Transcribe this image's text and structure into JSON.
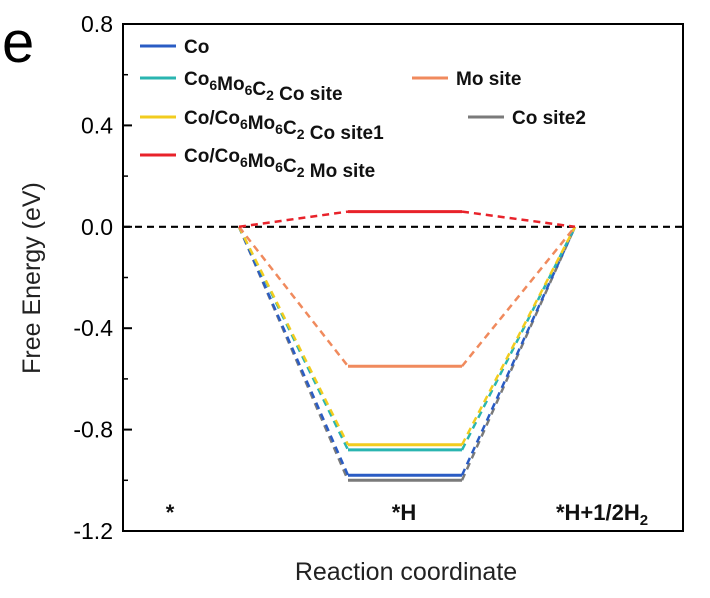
{
  "panel_label": "e",
  "chart_data": {
    "type": "line",
    "title": "",
    "xlabel": "Reaction coordinate",
    "ylabel": "Free Energy (eV)",
    "ylim": [
      -1.2,
      0.8
    ],
    "yticks": [
      -1.2,
      -0.8,
      -0.4,
      0.0,
      0.4,
      0.8
    ],
    "ytick_labels": [
      "-1.2",
      "-0.8",
      "-0.4",
      "0.0",
      "0.4",
      "0.8"
    ],
    "categories": [
      "*",
      "*H",
      "*H+1/2H2"
    ],
    "category_labels": [
      {
        "main": "*",
        "sub": "",
        "tail": ""
      },
      {
        "main": "*H",
        "sub": "",
        "tail": ""
      },
      {
        "main": "*H+1/2H",
        "sub": "2",
        "tail": ""
      }
    ],
    "reference_line": {
      "y": 0.0,
      "style": "dashed",
      "color": "#000000"
    },
    "series": [
      {
        "name": "Co",
        "name_parts": [
          [
            "Co",
            ""
          ]
        ],
        "color": "#2a5cc4",
        "values": [
          0,
          -0.98,
          0
        ]
      },
      {
        "name": "Co6Mo6C2 Co site",
        "name_parts": [
          [
            "Co",
            ""
          ],
          [
            "6",
            "sub"
          ],
          [
            "Mo",
            ""
          ],
          [
            "6",
            "sub"
          ],
          [
            "C",
            ""
          ],
          [
            "2",
            "sub"
          ],
          [
            " Co site",
            ""
          ]
        ],
        "color": "#2ab5b0",
        "values": [
          0,
          -0.88,
          0
        ]
      },
      {
        "name": "Mo site",
        "name_parts": [
          [
            "Mo site",
            ""
          ]
        ],
        "color": "#f08a5d",
        "values": [
          0,
          -0.55,
          0
        ]
      },
      {
        "name": "Co/Co6Mo6C2 Co site1",
        "name_parts": [
          [
            "Co/Co",
            ""
          ],
          [
            "6",
            "sub"
          ],
          [
            "Mo",
            ""
          ],
          [
            "6",
            "sub"
          ],
          [
            "C",
            ""
          ],
          [
            "2",
            "sub"
          ],
          [
            " Co site1",
            ""
          ]
        ],
        "color": "#f2cc1f",
        "values": [
          0,
          -0.86,
          0
        ]
      },
      {
        "name": "Co site2",
        "name_parts": [
          [
            "Co site2",
            ""
          ]
        ],
        "color": "#7a7a7a",
        "values": [
          0,
          -1.0,
          0
        ]
      },
      {
        "name": "Co/Co6Mo6C2 Mo site",
        "name_parts": [
          [
            "Co/Co",
            ""
          ],
          [
            "6",
            "sub"
          ],
          [
            "Mo",
            ""
          ],
          [
            "6",
            "sub"
          ],
          [
            "C",
            ""
          ],
          [
            "2",
            "sub"
          ],
          [
            " Mo site",
            ""
          ]
        ],
        "color": "#e8222a",
        "values": [
          0,
          0.06,
          0
        ]
      }
    ],
    "legend_layout": [
      [
        0
      ],
      [
        1,
        2
      ],
      [
        3,
        4
      ],
      [
        5
      ]
    ],
    "legend_position": "top-left"
  }
}
